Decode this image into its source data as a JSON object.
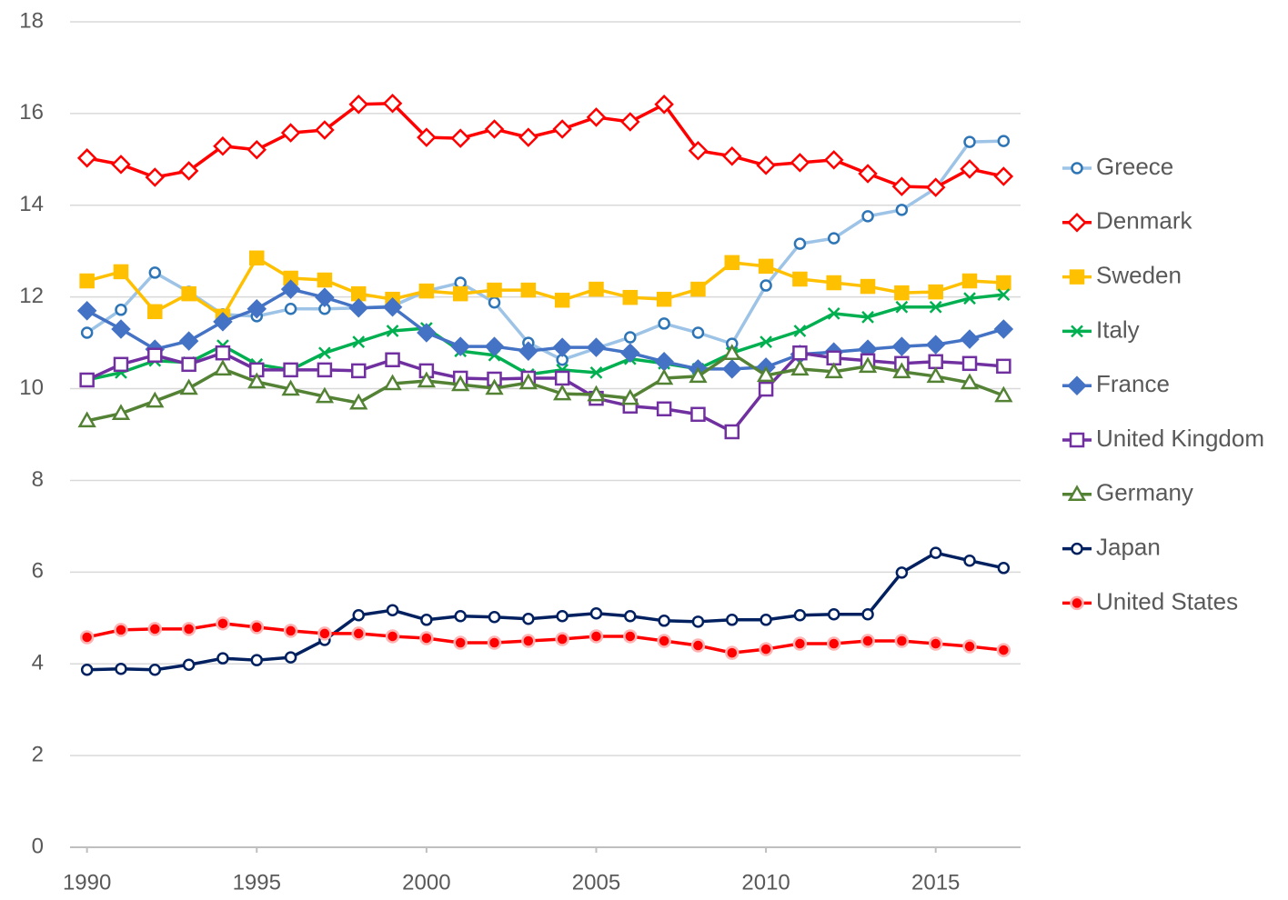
{
  "chart_data": {
    "type": "line",
    "x": [
      1990,
      1991,
      1992,
      1993,
      1994,
      1995,
      1996,
      1997,
      1998,
      1999,
      2000,
      2001,
      2002,
      2003,
      2004,
      2005,
      2006,
      2007,
      2008,
      2009,
      2010,
      2011,
      2012,
      2013,
      2014,
      2015,
      2016,
      2017
    ],
    "xlim": [
      1989.5,
      2017.5
    ],
    "xticks": [
      1990,
      1995,
      2000,
      2005,
      2010,
      2015
    ],
    "ylim": [
      0,
      18
    ],
    "yticks": [
      0,
      2,
      4,
      6,
      8,
      10,
      12,
      14,
      16,
      18
    ],
    "grid": true,
    "legend": "right",
    "series": [
      {
        "name": "Greece",
        "color": "#9dc3e6",
        "marker": "circle-open",
        "marker_color": "#2e75b6",
        "values": [
          11.22,
          11.72,
          12.53,
          12.11,
          11.62,
          11.58,
          11.74,
          11.74,
          11.76,
          11.8,
          12.13,
          12.31,
          11.88,
          11.0,
          10.63,
          10.88,
          11.12,
          11.42,
          11.22,
          10.98,
          12.25,
          13.16,
          13.28,
          13.76,
          13.9,
          14.37,
          15.38,
          15.4
        ]
      },
      {
        "name": "Denmark",
        "color": "#ff0000",
        "marker": "diamond-open",
        "marker_color": "#ff0000",
        "values": [
          15.03,
          14.89,
          14.61,
          14.75,
          15.29,
          15.21,
          15.58,
          15.64,
          16.2,
          16.22,
          15.48,
          15.46,
          15.66,
          15.48,
          15.66,
          15.92,
          15.82,
          16.2,
          15.19,
          15.07,
          14.87,
          14.93,
          14.99,
          14.69,
          14.41,
          14.39,
          14.79,
          14.63
        ]
      },
      {
        "name": "Sweden",
        "color": "#ffc000",
        "marker": "square",
        "marker_color": "#ffc000",
        "values": [
          12.35,
          12.55,
          11.68,
          12.07,
          11.58,
          12.85,
          12.41,
          12.37,
          12.07,
          11.95,
          12.13,
          12.07,
          12.15,
          12.15,
          11.93,
          12.17,
          11.99,
          11.95,
          12.17,
          12.75,
          12.67,
          12.39,
          12.31,
          12.23,
          12.09,
          12.11,
          12.35,
          12.31
        ]
      },
      {
        "name": "Italy",
        "color": "#00b050",
        "marker": "x",
        "marker_color": "#00b050",
        "values": [
          10.19,
          10.35,
          10.61,
          10.57,
          10.94,
          10.53,
          10.41,
          10.78,
          11.02,
          11.26,
          11.32,
          10.82,
          10.73,
          10.31,
          10.41,
          10.35,
          10.65,
          10.55,
          10.43,
          10.78,
          11.02,
          11.26,
          11.64,
          11.56,
          11.78,
          11.78,
          11.97,
          12.05
        ]
      },
      {
        "name": "France",
        "color": "#4472c4",
        "marker": "diamond",
        "marker_color": "#4472c4",
        "values": [
          11.7,
          11.3,
          10.86,
          11.04,
          11.46,
          11.74,
          12.17,
          11.99,
          11.76,
          11.78,
          11.22,
          10.92,
          10.92,
          10.82,
          10.9,
          10.9,
          10.78,
          10.59,
          10.43,
          10.43,
          10.47,
          10.75,
          10.8,
          10.86,
          10.92,
          10.96,
          11.08,
          11.3
        ]
      },
      {
        "name": "United Kingdom",
        "color": "#7030a0",
        "marker": "square-open",
        "marker_color": "#7030a0",
        "values": [
          10.19,
          10.53,
          10.73,
          10.53,
          10.78,
          10.41,
          10.41,
          10.41,
          10.39,
          10.63,
          10.39,
          10.23,
          10.21,
          10.23,
          10.23,
          9.79,
          9.62,
          9.56,
          9.44,
          9.06,
          9.99,
          10.78,
          10.67,
          10.61,
          10.55,
          10.59,
          10.55,
          10.49
        ]
      },
      {
        "name": "Germany",
        "color": "#548235",
        "marker": "triangle-open",
        "marker_color": "#548235",
        "values": [
          9.3,
          9.46,
          9.73,
          10.01,
          10.43,
          10.15,
          9.99,
          9.83,
          9.69,
          10.11,
          10.17,
          10.09,
          10.01,
          10.13,
          9.89,
          9.87,
          9.79,
          10.23,
          10.27,
          10.77,
          10.29,
          10.43,
          10.37,
          10.49,
          10.37,
          10.27,
          10.13,
          9.85
        ]
      },
      {
        "name": "Japan",
        "color": "#002060",
        "marker": "circle-open",
        "marker_color": "#002060",
        "values": [
          3.87,
          3.89,
          3.87,
          3.98,
          4.12,
          4.08,
          4.14,
          4.52,
          5.06,
          5.17,
          4.96,
          5.04,
          5.02,
          4.98,
          5.04,
          5.1,
          5.04,
          4.94,
          4.92,
          4.96,
          4.96,
          5.06,
          5.08,
          5.08,
          5.99,
          6.42,
          6.25,
          6.09
        ]
      },
      {
        "name": "United States",
        "color": "#ff0000",
        "marker": "circle",
        "marker_color": "#ff0000",
        "values": [
          4.58,
          4.74,
          4.76,
          4.76,
          4.88,
          4.8,
          4.72,
          4.66,
          4.66,
          4.6,
          4.56,
          4.46,
          4.46,
          4.5,
          4.54,
          4.6,
          4.6,
          4.5,
          4.4,
          4.24,
          4.32,
          4.44,
          4.44,
          4.5,
          4.5,
          4.44,
          4.38,
          4.3
        ]
      }
    ]
  }
}
